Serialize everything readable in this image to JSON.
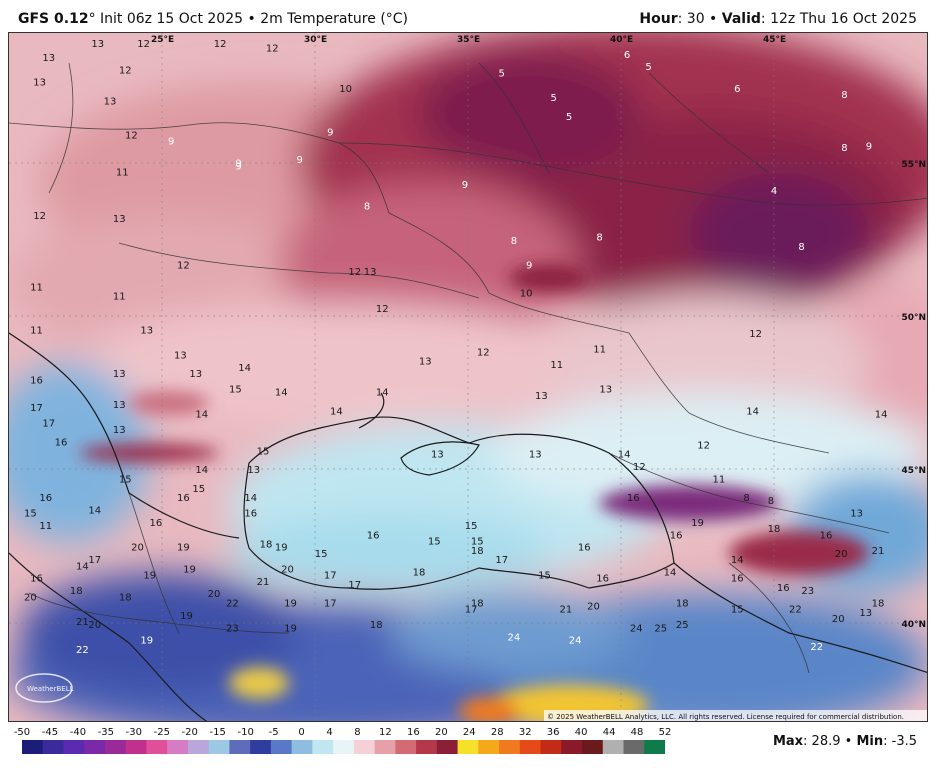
{
  "header": {
    "model": "GFS 0.12",
    "deg": "°",
    "init": " Init 06z 15 Oct 2025",
    "sep": " • ",
    "product": "2m Temperature (°C)",
    "hour_label": "Hour",
    "hour_value": ": 30",
    "valid_label": "Valid",
    "valid_value": ": 12z Thu 16 Oct 2025"
  },
  "map": {
    "lon_labels": [
      "25°E",
      "30°E",
      "35°E",
      "40°E",
      "45°E"
    ],
    "lat_labels": [
      "55°N",
      "50°N",
      "45°N",
      "40°N"
    ],
    "copyright": "© 2025 WeatherBELL Analytics, LLC. All rights reserved. License required for commercial distribution.",
    "logo_text": "WeatherBELL",
    "colors": {
      "warm_red": "#d2797d",
      "deep_red": "#9a2a4a",
      "purple": "#7a2a7a",
      "pink": "#f1c2c9",
      "pale": "#dceef5",
      "cyan": "#a7dcec",
      "blue": "#4a7bc4",
      "navy": "#3b4aa8",
      "yellow": "#f2c431",
      "orange": "#f07a1e"
    },
    "temperature_labels": [
      {
        "t": "13",
        "lon": 22.9,
        "lat": 57.3
      },
      {
        "t": "12",
        "lon": 24.4,
        "lat": 57.35
      },
      {
        "t": "12",
        "lon": 26.9,
        "lat": 57.2
      },
      {
        "t": "12",
        "lon": 28.6,
        "lat": 56.8
      },
      {
        "t": "13",
        "lon": 21.3,
        "lat": 56.5
      },
      {
        "t": "12",
        "lon": 23.8,
        "lat": 56.1
      },
      {
        "t": "13",
        "lon": 21.0,
        "lat": 55.7
      },
      {
        "t": "10",
        "lon": 31.0,
        "lat": 55.5
      },
      {
        "t": "5",
        "lon": 36.1,
        "lat": 56.0
      },
      {
        "t": "6",
        "lon": 40.2,
        "lat": 56.6
      },
      {
        "t": "5",
        "lon": 40.9,
        "lat": 56.2
      },
      {
        "t": "6",
        "lon": 43.8,
        "lat": 55.5
      },
      {
        "t": "8",
        "lon": 47.3,
        "lat": 55.3
      },
      {
        "t": "13",
        "lon": 23.3,
        "lat": 55.1
      },
      {
        "t": "5",
        "lon": 37.8,
        "lat": 55.2
      },
      {
        "t": "5",
        "lon": 38.3,
        "lat": 54.6
      },
      {
        "t": "12",
        "lon": 24.0,
        "lat": 54.0
      },
      {
        "t": "9",
        "lon": 25.3,
        "lat": 53.8
      },
      {
        "t": "9",
        "lon": 30.5,
        "lat": 54.1
      },
      {
        "t": "9",
        "lon": 29.5,
        "lat": 53.2
      },
      {
        "t": "55°N",
        "lon": 48.0,
        "lat": 54.5
      },
      {
        "t": "8",
        "lon": 47.3,
        "lat": 53.6
      },
      {
        "t": "9",
        "lon": 48.1,
        "lat": 53.65
      },
      {
        "t": "9",
        "lon": 27.5,
        "lat": 53.1
      },
      {
        "t": "9",
        "lon": 27.5,
        "lat": 53.0
      },
      {
        "t": "11",
        "lon": 23.7,
        "lat": 52.8
      },
      {
        "t": "9",
        "lon": 34.9,
        "lat": 52.4
      },
      {
        "t": "4",
        "lon": 45.0,
        "lat": 52.2
      },
      {
        "t": "8",
        "lon": 31.7,
        "lat": 51.7
      },
      {
        "t": "12",
        "lon": 21.0,
        "lat": 51.4
      },
      {
        "t": "13",
        "lon": 23.6,
        "lat": 51.3
      },
      {
        "t": "8",
        "lon": 36.5,
        "lat": 50.6
      },
      {
        "t": "8",
        "lon": 39.3,
        "lat": 50.7
      },
      {
        "t": "8",
        "lon": 45.9,
        "lat": 50.4
      },
      {
        "t": "12",
        "lon": 25.7,
        "lat": 49.8
      },
      {
        "t": "9",
        "lon": 37.0,
        "lat": 49.8
      },
      {
        "t": "12",
        "lon": 31.3,
        "lat": 49.6
      },
      {
        "t": "13",
        "lon": 31.8,
        "lat": 49.6
      },
      {
        "t": "11",
        "lon": 20.9,
        "lat": 49.1
      },
      {
        "t": "11",
        "lon": 23.6,
        "lat": 48.8
      },
      {
        "t": "10",
        "lon": 36.9,
        "lat": 48.9
      },
      {
        "t": "12",
        "lon": 32.2,
        "lat": 48.4
      },
      {
        "t": "11",
        "lon": 20.9,
        "lat": 47.7
      },
      {
        "t": "13",
        "lon": 24.5,
        "lat": 47.7
      },
      {
        "t": "12",
        "lon": 44.4,
        "lat": 47.6
      },
      {
        "t": "12",
        "lon": 35.5,
        "lat": 47.0
      },
      {
        "t": "11",
        "lon": 39.3,
        "lat": 47.1
      },
      {
        "t": "13",
        "lon": 25.6,
        "lat": 46.9
      },
      {
        "t": "13",
        "lon": 33.6,
        "lat": 46.7
      },
      {
        "t": "11",
        "lon": 37.9,
        "lat": 46.6
      },
      {
        "t": "14",
        "lon": 27.7,
        "lat": 46.5
      },
      {
        "t": "13",
        "lon": 23.6,
        "lat": 46.3
      },
      {
        "t": "13",
        "lon": 26.1,
        "lat": 46.3
      },
      {
        "t": "16",
        "lon": 20.9,
        "lat": 46.1
      },
      {
        "t": "15",
        "lon": 27.4,
        "lat": 45.8
      },
      {
        "t": "14",
        "lon": 28.9,
        "lat": 45.7
      },
      {
        "t": "14",
        "lon": 32.2,
        "lat": 45.7
      },
      {
        "t": "13",
        "lon": 37.4,
        "lat": 45.6
      },
      {
        "t": "13",
        "lon": 39.5,
        "lat": 45.8
      },
      {
        "t": "13",
        "lon": 23.6,
        "lat": 45.3
      },
      {
        "t": "17",
        "lon": 20.9,
        "lat": 45.2
      },
      {
        "t": "14",
        "lon": 26.3,
        "lat": 45.0
      },
      {
        "t": "14",
        "lon": 30.7,
        "lat": 45.1
      },
      {
        "t": "14",
        "lon": 44.3,
        "lat": 45.1
      },
      {
        "t": "14",
        "lon": 48.5,
        "lat": 45.0
      },
      {
        "t": "17",
        "lon": 21.3,
        "lat": 44.7
      },
      {
        "t": "13",
        "lon": 23.6,
        "lat": 44.5
      },
      {
        "t": "16",
        "lon": 21.7,
        "lat": 44.1
      },
      {
        "t": "12",
        "lon": 42.7,
        "lat": 44.0
      },
      {
        "t": "45°N",
        "lon": 48.8,
        "lat": 43.9
      },
      {
        "t": "15",
        "lon": 28.3,
        "lat": 43.8
      },
      {
        "t": "13",
        "lon": 34.0,
        "lat": 43.7
      },
      {
        "t": "13",
        "lon": 37.2,
        "lat": 43.7
      },
      {
        "t": "14",
        "lon": 40.1,
        "lat": 43.7
      },
      {
        "t": "12",
        "lon": 40.6,
        "lat": 43.3
      },
      {
        "t": "14",
        "lon": 26.3,
        "lat": 43.2
      },
      {
        "t": "13",
        "lon": 28.0,
        "lat": 43.2
      },
      {
        "t": "15",
        "lon": 23.8,
        "lat": 42.9
      },
      {
        "t": "11",
        "lon": 43.2,
        "lat": 42.9
      },
      {
        "t": "15",
        "lon": 26.2,
        "lat": 42.6
      },
      {
        "t": "16",
        "lon": 21.2,
        "lat": 42.3
      },
      {
        "t": "16",
        "lon": 25.7,
        "lat": 42.3
      },
      {
        "t": "14",
        "lon": 27.9,
        "lat": 42.3
      },
      {
        "t": "16",
        "lon": 40.4,
        "lat": 42.3
      },
      {
        "t": "8",
        "lon": 44.1,
        "lat": 42.3
      },
      {
        "t": "8",
        "lon": 44.9,
        "lat": 42.2
      },
      {
        "t": "14",
        "lon": 22.8,
        "lat": 41.9
      },
      {
        "t": "13",
        "lon": 47.7,
        "lat": 41.8
      },
      {
        "t": "15",
        "lon": 20.7,
        "lat": 41.8
      },
      {
        "t": "16",
        "lon": 27.9,
        "lat": 41.8
      },
      {
        "t": "19",
        "lon": 42.5,
        "lat": 41.5
      },
      {
        "t": "16",
        "lon": 24.8,
        "lat": 41.5
      },
      {
        "t": "11",
        "lon": 21.2,
        "lat": 41.4
      },
      {
        "t": "15",
        "lon": 35.1,
        "lat": 41.4
      },
      {
        "t": "18",
        "lon": 45.0,
        "lat": 41.3
      },
      {
        "t": "16",
        "lon": 31.9,
        "lat": 41.1
      },
      {
        "t": "16",
        "lon": 41.8,
        "lat": 41.1
      },
      {
        "t": "15",
        "lon": 33.9,
        "lat": 40.9
      },
      {
        "t": "15",
        "lon": 35.3,
        "lat": 40.9
      },
      {
        "t": "16",
        "lon": 46.7,
        "lat": 41.1
      },
      {
        "t": "18",
        "lon": 28.4,
        "lat": 40.8
      },
      {
        "t": "16",
        "lon": 38.8,
        "lat": 40.7
      },
      {
        "t": "20",
        "lon": 24.2,
        "lat": 40.7
      },
      {
        "t": "19",
        "lon": 25.7,
        "lat": 40.7
      },
      {
        "t": "19",
        "lon": 28.9,
        "lat": 40.7
      },
      {
        "t": "18",
        "lon": 35.3,
        "lat": 40.6
      },
      {
        "t": "20",
        "lon": 47.2,
        "lat": 40.5
      },
      {
        "t": "21",
        "lon": 48.4,
        "lat": 40.6
      },
      {
        "t": "15",
        "lon": 30.2,
        "lat": 40.5
      },
      {
        "t": "17",
        "lon": 36.1,
        "lat": 40.3
      },
      {
        "t": "14",
        "lon": 43.8,
        "lat": 40.3
      },
      {
        "t": "14",
        "lon": 22.4,
        "lat": 40.1
      },
      {
        "t": "17",
        "lon": 22.8,
        "lat": 40.3
      },
      {
        "t": "19",
        "lon": 25.9,
        "lat": 40.0
      },
      {
        "t": "20",
        "lon": 29.1,
        "lat": 40.0
      },
      {
        "t": "18",
        "lon": 33.4,
        "lat": 39.9
      },
      {
        "t": "15",
        "lon": 37.5,
        "lat": 39.8
      },
      {
        "t": "14",
        "lon": 41.6,
        "lat": 39.9
      },
      {
        "t": "19",
        "lon": 24.6,
        "lat": 39.8
      },
      {
        "t": "17",
        "lon": 30.5,
        "lat": 39.8
      },
      {
        "t": "40°N",
        "lon": 48.8,
        "lat": 39.9
      },
      {
        "t": "16",
        "lon": 20.9,
        "lat": 39.7
      },
      {
        "t": "16",
        "lon": 39.4,
        "lat": 39.7
      },
      {
        "t": "16",
        "lon": 43.8,
        "lat": 39.7
      },
      {
        "t": "21",
        "lon": 28.3,
        "lat": 39.6
      },
      {
        "t": "17",
        "lon": 31.3,
        "lat": 39.5
      },
      {
        "t": "18",
        "lon": 22.2,
        "lat": 39.3
      },
      {
        "t": "16",
        "lon": 45.3,
        "lat": 39.4
      },
      {
        "t": "23",
        "lon": 46.1,
        "lat": 39.3
      },
      {
        "t": "20",
        "lon": 20.7,
        "lat": 39.1
      },
      {
        "t": "18",
        "lon": 23.8,
        "lat": 39.1
      },
      {
        "t": "20",
        "lon": 26.7,
        "lat": 39.2
      },
      {
        "t": "22",
        "lon": 27.3,
        "lat": 38.9
      },
      {
        "t": "19",
        "lon": 29.2,
        "lat": 38.9
      },
      {
        "t": "17",
        "lon": 30.5,
        "lat": 38.9
      },
      {
        "t": "18",
        "lon": 35.3,
        "lat": 38.9
      },
      {
        "t": "20",
        "lon": 39.1,
        "lat": 38.8
      },
      {
        "t": "18",
        "lon": 42.0,
        "lat": 38.9
      },
      {
        "t": "18",
        "lon": 48.4,
        "lat": 38.9
      },
      {
        "t": "21",
        "lon": 38.2,
        "lat": 38.7
      },
      {
        "t": "17",
        "lon": 35.1,
        "lat": 38.7
      },
      {
        "t": "15",
        "lon": 43.8,
        "lat": 38.7
      },
      {
        "t": "22",
        "lon": 45.7,
        "lat": 38.7
      },
      {
        "t": "13",
        "lon": 48.0,
        "lat": 38.6
      },
      {
        "t": "19",
        "lon": 25.8,
        "lat": 38.5
      },
      {
        "t": "20",
        "lon": 47.1,
        "lat": 38.4
      },
      {
        "t": "21",
        "lon": 22.4,
        "lat": 38.3
      },
      {
        "t": "20",
        "lon": 22.8,
        "lat": 38.2
      },
      {
        "t": "18",
        "lon": 32.0,
        "lat": 38.2
      },
      {
        "t": "23",
        "lon": 27.3,
        "lat": 38.1
      },
      {
        "t": "19",
        "lon": 29.2,
        "lat": 38.1
      },
      {
        "t": "24",
        "lon": 40.5,
        "lat": 38.1
      },
      {
        "t": "25",
        "lon": 41.3,
        "lat": 38.1
      },
      {
        "t": "25",
        "lon": 42.0,
        "lat": 38.2
      },
      {
        "t": "24",
        "lon": 36.5,
        "lat": 37.8
      },
      {
        "t": "24",
        "lon": 38.5,
        "lat": 37.7
      },
      {
        "t": "19",
        "lon": 24.5,
        "lat": 37.7
      },
      {
        "t": "22",
        "lon": 46.4,
        "lat": 37.5
      },
      {
        "t": "22",
        "lon": 22.4,
        "lat": 37.4
      }
    ]
  },
  "colorbar": {
    "ticks": [
      "-50",
      "-45",
      "-40",
      "-35",
      "-30",
      "-25",
      "-20",
      "-15",
      "-10",
      "-5",
      "0",
      "4",
      "8",
      "12",
      "16",
      "20",
      "24",
      "28",
      "32",
      "36",
      "40",
      "44",
      "48",
      "52"
    ],
    "stops": [
      "#1c1c7a",
      "#3a2a9c",
      "#5a2ab0",
      "#7a2aa8",
      "#9a2a98",
      "#c0308c",
      "#e04f9a",
      "#d67cc4",
      "#b9a6dd",
      "#9dc8e4",
      "#5e6dba",
      "#2f3d9f",
      "#5a78c8",
      "#8fbde0",
      "#bfe6f1",
      "#e7f5f7",
      "#f5d0d6",
      "#e6a1a8",
      "#d46a74",
      "#b2384a",
      "#8b1f38",
      "#f6e12a",
      "#f5a81a",
      "#f07a1e",
      "#e54a18",
      "#c42a18",
      "#8a1a2a",
      "#6a1a1a",
      "#b0b0b0",
      "#6a6a6a",
      "#0f7a4a"
    ],
    "max_label": "Max",
    "max_value": ": 28.9",
    "sep": " • ",
    "min_label": "Min",
    "min_value": ": -3.5"
  }
}
